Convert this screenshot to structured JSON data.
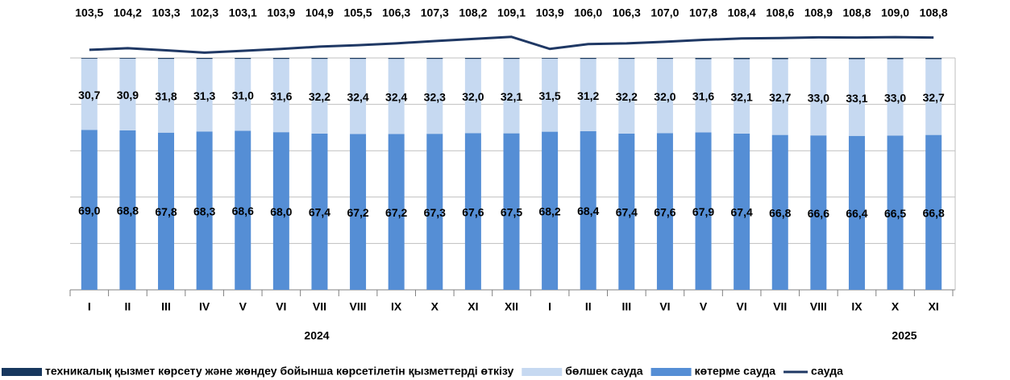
{
  "chart_data": {
    "type": "bar",
    "stacked": true,
    "categories": [
      "I",
      "II",
      "III",
      "IV",
      "V",
      "VI",
      "VII",
      "VIII",
      "IX",
      "X",
      "XI",
      "XII",
      "I",
      "II",
      "III",
      "VI",
      "V",
      "VI",
      "VII",
      "VIII",
      "IX",
      "X",
      "XI"
    ],
    "year_labels": [
      "2024",
      "2025"
    ],
    "ylim": [
      0,
      120
    ],
    "yticks": [
      0,
      20,
      40,
      60,
      80,
      100
    ],
    "y2lim": [
      0,
      120
    ],
    "grid": true,
    "legend": "bottom",
    "series": [
      {
        "name": "көтерме сауда",
        "color": "#558ed5",
        "values": [
          69.0,
          68.8,
          67.8,
          68.3,
          68.6,
          68.0,
          67.4,
          67.2,
          67.2,
          67.3,
          67.6,
          67.5,
          68.2,
          68.4,
          67.4,
          67.6,
          67.9,
          67.4,
          66.8,
          66.6,
          66.4,
          66.5,
          66.8
        ],
        "value_labels": [
          "69,0",
          "68,8",
          "67,8",
          "68,3",
          "68,6",
          "68,0",
          "67,4",
          "67,2",
          "67,2",
          "67,3",
          "67,6",
          "67,5",
          "68,2",
          "68,4",
          "67,4",
          "67,6",
          "67,9",
          "67,4",
          "66,8",
          "66,6",
          "66,4",
          "66,5",
          "66,8"
        ]
      },
      {
        "name": "бөлшек сауда",
        "color": "#c6d9f1",
        "values": [
          30.7,
          30.9,
          31.8,
          31.3,
          31.0,
          31.6,
          32.2,
          32.4,
          32.4,
          32.3,
          32.0,
          32.1,
          31.5,
          31.2,
          32.2,
          32.0,
          31.6,
          32.1,
          32.7,
          33.0,
          33.1,
          33.0,
          32.7
        ],
        "value_labels": [
          "30,7",
          "30,9",
          "31,8",
          "31,3",
          "31,0",
          "31,6",
          "32,2",
          "32,4",
          "32,4",
          "32,3",
          "32,0",
          "32,1",
          "31,5",
          "31,2",
          "32,2",
          "32,0",
          "31,6",
          "32,1",
          "32,7",
          "33,0",
          "33,1",
          "33,0",
          "32,7"
        ]
      },
      {
        "name": "техникалық қызмет көрсету және жөндеу бойынша көрсетілетін қызметтерді өткізу",
        "color": "#17375e",
        "values": [
          0.3,
          0.3,
          0.4,
          0.4,
          0.4,
          0.4,
          0.4,
          0.4,
          0.4,
          0.4,
          0.4,
          0.4,
          0.3,
          0.4,
          0.4,
          0.4,
          0.5,
          0.5,
          0.5,
          0.4,
          0.5,
          0.5,
          0.5
        ]
      },
      {
        "name": "сауда",
        "type": "line",
        "axis": "y2",
        "color": "#1f3864",
        "values": [
          103.5,
          104.2,
          103.3,
          102.3,
          103.1,
          103.9,
          104.9,
          105.5,
          106.3,
          107.3,
          108.2,
          109.1,
          103.9,
          106.0,
          106.3,
          107.0,
          107.8,
          108.4,
          108.6,
          108.9,
          108.8,
          109.0,
          108.8
        ],
        "value_labels": [
          "103,5",
          "104,2",
          "103,3",
          "102,3",
          "103,1",
          "103,9",
          "104,9",
          "105,5",
          "106,3",
          "107,3",
          "108,2",
          "109,1",
          "103,9",
          "106,0",
          "106,3",
          "107,0",
          "107,8",
          "108,4",
          "108,6",
          "108,9",
          "108,8",
          "109,0",
          "108,8"
        ]
      }
    ],
    "legend_order": [
      2,
      1,
      0,
      3
    ]
  }
}
